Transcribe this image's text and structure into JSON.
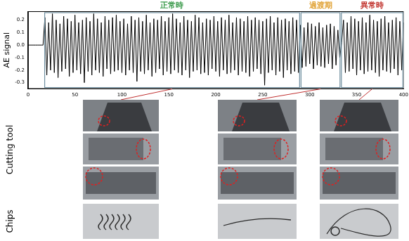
{
  "chart_data": {
    "type": "line",
    "y_label": "AE signal",
    "color": "#000000",
    "grid": false,
    "xlim": [
      0,
      400
    ],
    "xticks": [
      0,
      50,
      100,
      150,
      200,
      250,
      300,
      350,
      400
    ],
    "ylim": [
      -0.35,
      0.27
    ],
    "yticks": [
      -0.3,
      -0.2,
      -0.1,
      {
        "value": 0,
        "label": "0.0"
      },
      0.1,
      0.2
    ],
    "regions": [
      {
        "label": "正常時",
        "start": 17,
        "end": 290,
        "color": "#3a9a4a"
      },
      {
        "label": "過渡期",
        "start": 290,
        "end": 333,
        "color": "#e0a030"
      },
      {
        "label": "異常時",
        "start": 333,
        "end": 400,
        "color": "#c0302a"
      }
    ],
    "x": [
      0,
      2,
      4,
      6,
      8,
      10,
      12,
      14,
      16,
      18,
      20,
      22,
      24,
      26,
      28,
      30,
      32,
      34,
      36,
      38,
      40,
      42,
      44,
      46,
      48,
      50,
      52,
      54,
      56,
      58,
      60,
      62,
      64,
      66,
      68,
      70,
      72,
      74,
      76,
      78,
      80,
      82,
      84,
      86,
      88,
      90,
      92,
      94,
      96,
      98,
      100,
      102,
      104,
      106,
      108,
      110,
      112,
      114,
      116,
      118,
      120,
      122,
      124,
      126,
      128,
      130,
      132,
      134,
      136,
      138,
      140,
      142,
      144,
      146,
      148,
      150,
      152,
      154,
      156,
      158,
      160,
      162,
      164,
      166,
      168,
      170,
      172,
      174,
      176,
      178,
      180,
      182,
      184,
      186,
      188,
      190,
      192,
      194,
      196,
      198,
      200,
      202,
      204,
      206,
      208,
      210,
      212,
      214,
      216,
      218,
      220,
      222,
      224,
      226,
      228,
      230,
      232,
      234,
      236,
      238,
      240,
      242,
      244,
      246,
      248,
      250,
      252,
      254,
      256,
      258,
      260,
      262,
      264,
      266,
      268,
      270,
      272,
      274,
      276,
      278,
      280,
      282,
      284,
      286,
      288,
      290,
      292,
      294,
      296,
      298,
      300,
      302,
      304,
      306,
      308,
      310,
      312,
      314,
      316,
      318,
      320,
      322,
      324,
      326,
      328,
      330,
      332,
      334,
      336,
      338,
      340,
      342,
      344,
      346,
      348,
      350,
      352,
      354,
      356,
      358,
      360,
      362,
      364,
      366,
      368,
      370,
      372,
      374,
      376,
      378,
      380,
      382,
      384,
      386,
      388,
      390,
      392,
      394,
      396,
      398,
      400
    ],
    "values": [
      0,
      0,
      0,
      0,
      0,
      0,
      0,
      0,
      0,
      0.22,
      -0.24,
      0.18,
      -0.2,
      0.25,
      -0.22,
      0.2,
      -0.26,
      0.17,
      -0.21,
      0.23,
      -0.19,
      0.21,
      -0.25,
      0.19,
      -0.22,
      0.24,
      -0.2,
      0.18,
      -0.23,
      0.2,
      -0.3,
      0.22,
      -0.21,
      0.19,
      -0.24,
      0.25,
      -0.2,
      0.21,
      -0.22,
      0.18,
      -0.25,
      0.23,
      -0.19,
      0.2,
      -0.23,
      0.22,
      -0.21,
      0.24,
      -0.2,
      0.19,
      -0.22,
      0.21,
      -0.24,
      0.17,
      -0.2,
      0.23,
      -0.22,
      0.2,
      -0.29,
      0.22,
      -0.21,
      0.19,
      -0.23,
      0.24,
      -0.2,
      0.18,
      -0.25,
      0.21,
      -0.22,
      0.2,
      -0.19,
      0.23,
      -0.24,
      0.19,
      -0.21,
      0.22,
      -0.23,
      0.25,
      -0.2,
      0.21,
      -0.22,
      0.18,
      -0.24,
      0.23,
      -0.2,
      0.2,
      -0.26,
      0.19,
      -0.21,
      0.24,
      -0.2,
      0.22,
      -0.23,
      0.18,
      -0.22,
      0.21,
      -0.24,
      0.2,
      -0.19,
      0.23,
      -0.21,
      0.19,
      -0.25,
      0.22,
      -0.2,
      0.2,
      -0.23,
      0.24,
      -0.22,
      0.18,
      -0.2,
      0.22,
      -0.24,
      0.21,
      -0.21,
      0.19,
      -0.22,
      0.23,
      -0.25,
      0.2,
      -0.21,
      0.22,
      -0.19,
      0.2,
      -0.23,
      0.19,
      -0.32,
      0.21,
      -0.22,
      0.23,
      -0.2,
      0.18,
      -0.24,
      0.22,
      -0.21,
      0.2,
      -0.26,
      0.21,
      -0.2,
      0.19,
      -0.23,
      0.22,
      -0.21,
      0.2,
      -0.22,
      0.16,
      -0.18,
      0.14,
      -0.17,
      0.18,
      -0.15,
      0.17,
      -0.19,
      0.15,
      -0.16,
      0.18,
      -0.17,
      0.14,
      -0.18,
      0.16,
      -0.15,
      0.17,
      -0.19,
      0.15,
      -0.16,
      0.12,
      -0.1,
      0.02,
      0.2,
      -0.22,
      0.18,
      -0.21,
      0.23,
      -0.19,
      0.21,
      -0.24,
      0.19,
      -0.2,
      0.22,
      -0.23,
      0.18,
      -0.21,
      0.24,
      -0.2,
      0.2,
      -0.22,
      0.19,
      -0.25,
      0.21,
      -0.2,
      0.23,
      -0.21,
      0.18,
      -0.22,
      0.2,
      -0.19,
      0.22,
      -0.24,
      0.19,
      -0.2,
      0.18
    ]
  },
  "figure": {
    "row_labels": [
      "Cutting tool",
      "Chips"
    ]
  }
}
